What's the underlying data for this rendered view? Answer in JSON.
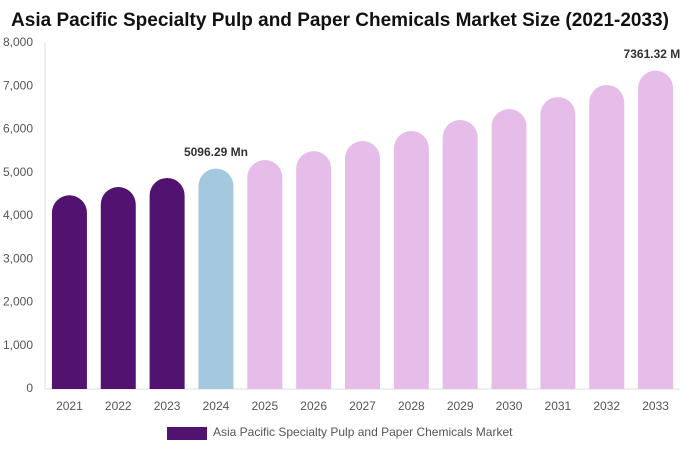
{
  "chart_data": {
    "type": "bar",
    "title": "Asia Pacific Specialty Pulp and Paper Chemicals Market Size (2021-2033)",
    "categories": [
      "2021",
      "2022",
      "2023",
      "2024",
      "2025",
      "2026",
      "2027",
      "2028",
      "2029",
      "2030",
      "2031",
      "2032",
      "2033"
    ],
    "series": [
      {
        "name": "Asia Pacific Specialty Pulp and Paper Chemicals Market",
        "color": "#52126f",
        "values": [
          4480,
          4670,
          4880,
          5096.29,
          5295,
          5500,
          5734,
          5965,
          6220,
          6474,
          6750,
          7030,
          7361.32
        ],
        "value_labels": [
          null,
          null,
          null,
          "5096.29 Mn",
          null,
          null,
          null,
          null,
          null,
          null,
          null,
          null,
          "7361.32 Mn"
        ]
      }
    ],
    "bar_colors": [
      "#52126f",
      "#52126f",
      "#52126f",
      "#a4c8de",
      "#e6bde8",
      "#e6bde8",
      "#e6bde8",
      "#e6bde8",
      "#e6bde8",
      "#e6bde8",
      "#e6bde8",
      "#e6bde8",
      "#e6bde8"
    ],
    "ylim": [
      0,
      8000
    ],
    "yticks": [
      0,
      {
        "value": 1000,
        "label": "1,000"
      },
      {
        "value": 2000,
        "label": "2,000"
      },
      {
        "value": 3000,
        "label": "3,000"
      },
      {
        "value": 4000,
        "label": "4,000"
      },
      {
        "value": 5000,
        "label": "5,000"
      },
      {
        "value": 6000,
        "label": "6,000"
      },
      {
        "value": 7000,
        "label": "7,000"
      },
      {
        "value": 8000,
        "label": "8,000"
      }
    ],
    "grid": false
  }
}
